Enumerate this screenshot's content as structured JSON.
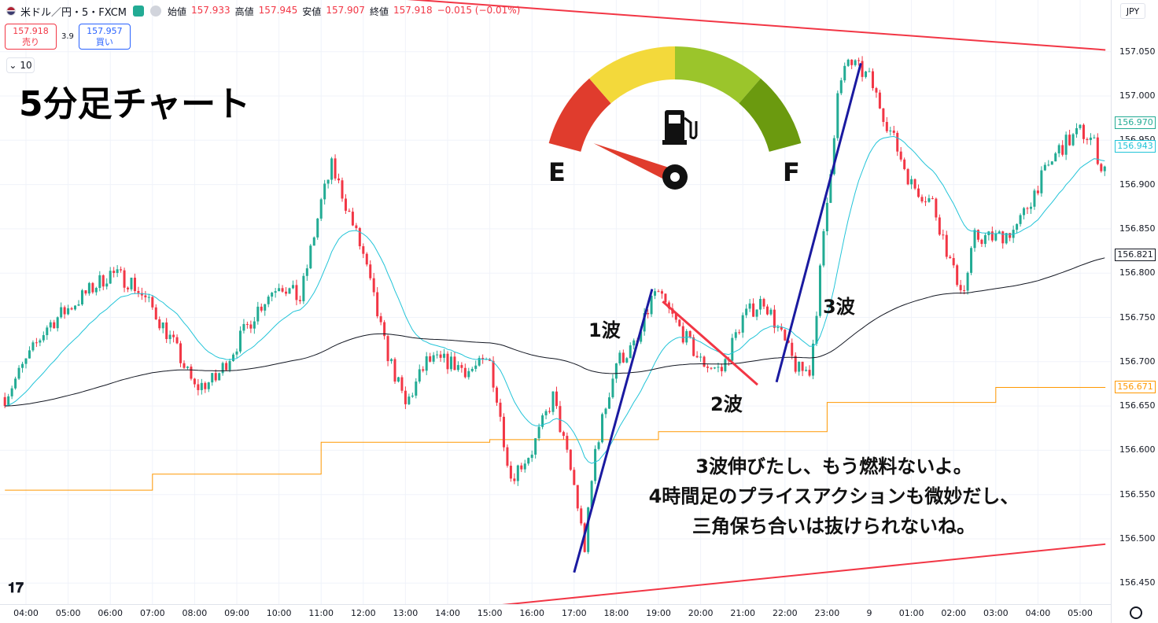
{
  "header": {
    "symbol": "米ドル／円・5・FXCM",
    "ohlc": [
      {
        "label": "始値",
        "value": "157.933"
      },
      {
        "label": "高値",
        "value": "157.945"
      },
      {
        "label": "安値",
        "value": "157.907"
      },
      {
        "label": "終値",
        "value": "157.918"
      },
      {
        "label": "",
        "value": "−0.015 (−0.01%)"
      }
    ]
  },
  "trade": {
    "sell_price": "157.918",
    "sell_label": "売り",
    "spread": "3.9",
    "buy_price": "157.957",
    "buy_label": "買い"
  },
  "indicator_count": "10",
  "currency": "JPY",
  "title": "5分足チャート",
  "gauge": {
    "empty_label": "E",
    "full_label": "F",
    "level": 0.05,
    "icon": "fuel-pump-icon"
  },
  "waves": {
    "w1": "1波",
    "w2": "2波",
    "w3": "3波"
  },
  "note_lines": [
    "3波伸びたし、もう燃料ないよ。",
    "4時間足のプライスアクションも微妙だし、",
    "三角保ち合いは抜けられないね。"
  ],
  "price_labels": [
    {
      "value": "156.970",
      "color": "#22ab94"
    },
    {
      "value": "156.943",
      "color": "#22c4d8"
    },
    {
      "value": "156.821",
      "color": "#131722"
    },
    {
      "value": "156.671",
      "color": "#ff9800"
    }
  ],
  "colors": {
    "bull": "#22ab94",
    "bear": "#f23645",
    "ema_fast": "#22c4d8",
    "ema_slow": "#131722",
    "level": "#ff9800",
    "trendline": "#f23645",
    "impulse": "#1a1aa0"
  },
  "chart_data": {
    "type": "candlestick",
    "title": "5分足チャート",
    "ylim": [
      156.425,
      157.075
    ],
    "y_ticks": [
      "157.050",
      "157.000",
      "156.950",
      "156.900",
      "156.850",
      "156.800",
      "156.750",
      "156.700",
      "156.650",
      "156.600",
      "156.550",
      "156.500",
      "156.450"
    ],
    "x_ticks": [
      "04:00",
      "05:00",
      "06:00",
      "07:00",
      "08:00",
      "09:00",
      "10:00",
      "11:00",
      "12:00",
      "13:00",
      "14:00",
      "15:00",
      "16:00",
      "17:00",
      "18:00",
      "19:00",
      "20:00",
      "21:00",
      "22:00",
      "23:00",
      "9",
      "01:00",
      "02:00",
      "03:00",
      "04:00",
      "05:00"
    ],
    "close_series": {
      "hours": [
        3.5,
        4.0,
        4.5,
        5.0,
        5.5,
        6.0,
        6.5,
        7.0,
        7.5,
        8.0,
        8.5,
        9.0,
        9.5,
        10.0,
        10.5,
        11.0,
        11.25,
        11.5,
        12.0,
        12.5,
        13.0,
        13.5,
        14.0,
        14.5,
        15.0,
        15.5,
        16.0,
        16.5,
        17.0,
        17.25,
        17.5,
        18.0,
        18.5,
        18.9,
        19.2,
        19.6,
        20.0,
        20.5,
        21.0,
        21.5,
        22.0,
        22.3,
        22.6,
        23.0,
        23.25,
        23.5,
        24.0,
        24.5,
        25.0,
        25.5,
        26.0,
        26.25,
        26.5,
        27.0,
        27.5,
        28.0,
        28.5,
        29.0,
        29.3,
        29.5
      ],
      "closes": [
        156.66,
        156.7,
        156.74,
        156.76,
        156.78,
        156.8,
        156.79,
        156.76,
        156.72,
        156.67,
        156.68,
        156.72,
        156.76,
        156.79,
        156.77,
        156.88,
        156.92,
        156.89,
        156.82,
        156.72,
        156.65,
        156.7,
        156.7,
        156.69,
        156.7,
        156.57,
        156.6,
        156.66,
        156.56,
        156.49,
        156.6,
        156.7,
        156.72,
        156.78,
        156.76,
        156.73,
        156.7,
        156.69,
        156.75,
        156.77,
        156.72,
        156.69,
        156.69,
        156.88,
        157.0,
        157.04,
        157.02,
        156.96,
        156.9,
        156.88,
        156.8,
        156.78,
        156.84,
        156.84,
        156.85,
        156.9,
        156.94,
        156.96,
        156.95,
        156.92
      ]
    },
    "series": [
      {
        "name": "",
        "value": "156.943",
        "desc_color": "#22c4d8"
      },
      {
        "name": "",
        "value": "156.821",
        "desc_color": "#131722"
      },
      {
        "name": "",
        "value": "156.671",
        "desc_color": "#ff9800"
      }
    ]
  }
}
